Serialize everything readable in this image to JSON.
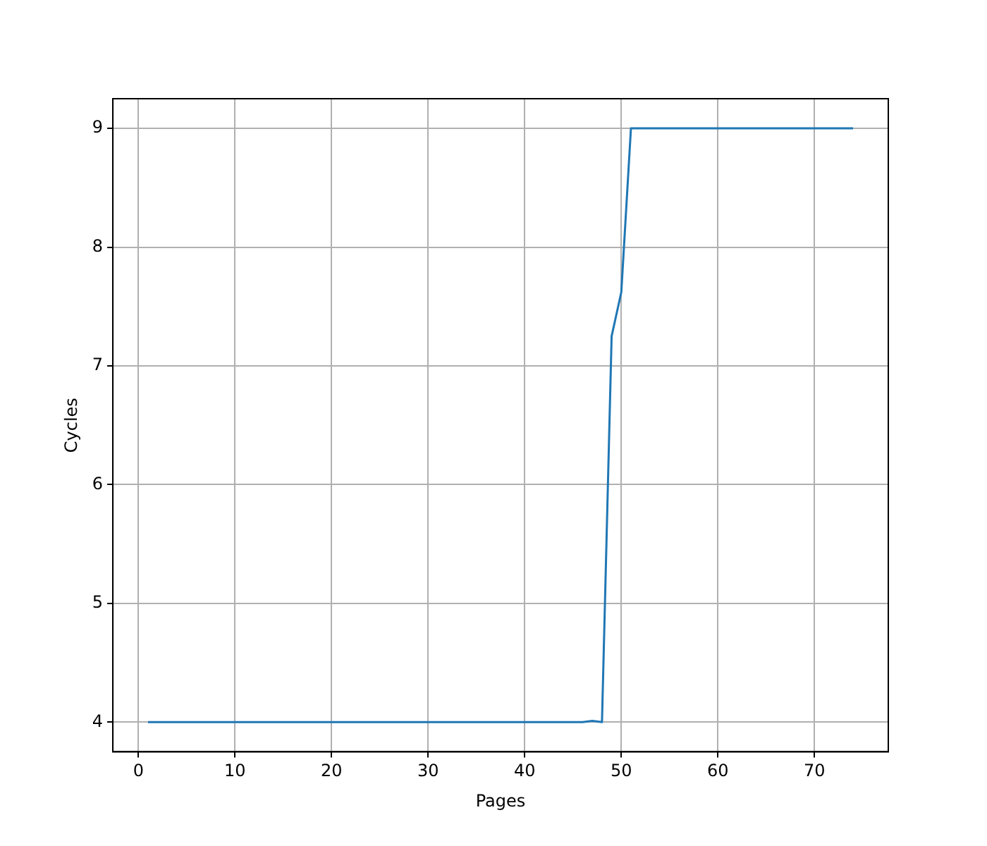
{
  "chart_data": {
    "type": "line",
    "xlabel": "Pages",
    "ylabel": "Cycles",
    "grid": true,
    "xlim": [
      -2.65,
      77.65
    ],
    "xticks": [
      0,
      10,
      20,
      30,
      40,
      50,
      60,
      70
    ],
    "ylim": [
      3.75,
      9.25
    ],
    "yticks": [
      4,
      5,
      6,
      7,
      8,
      9
    ],
    "series": [
      {
        "color": "#1f77b4",
        "x": [
          1,
          46,
          47,
          48,
          49,
          50,
          51,
          74
        ],
        "values": [
          4,
          4,
          4.01,
          4,
          7.25,
          7.62,
          9,
          9
        ]
      }
    ]
  }
}
